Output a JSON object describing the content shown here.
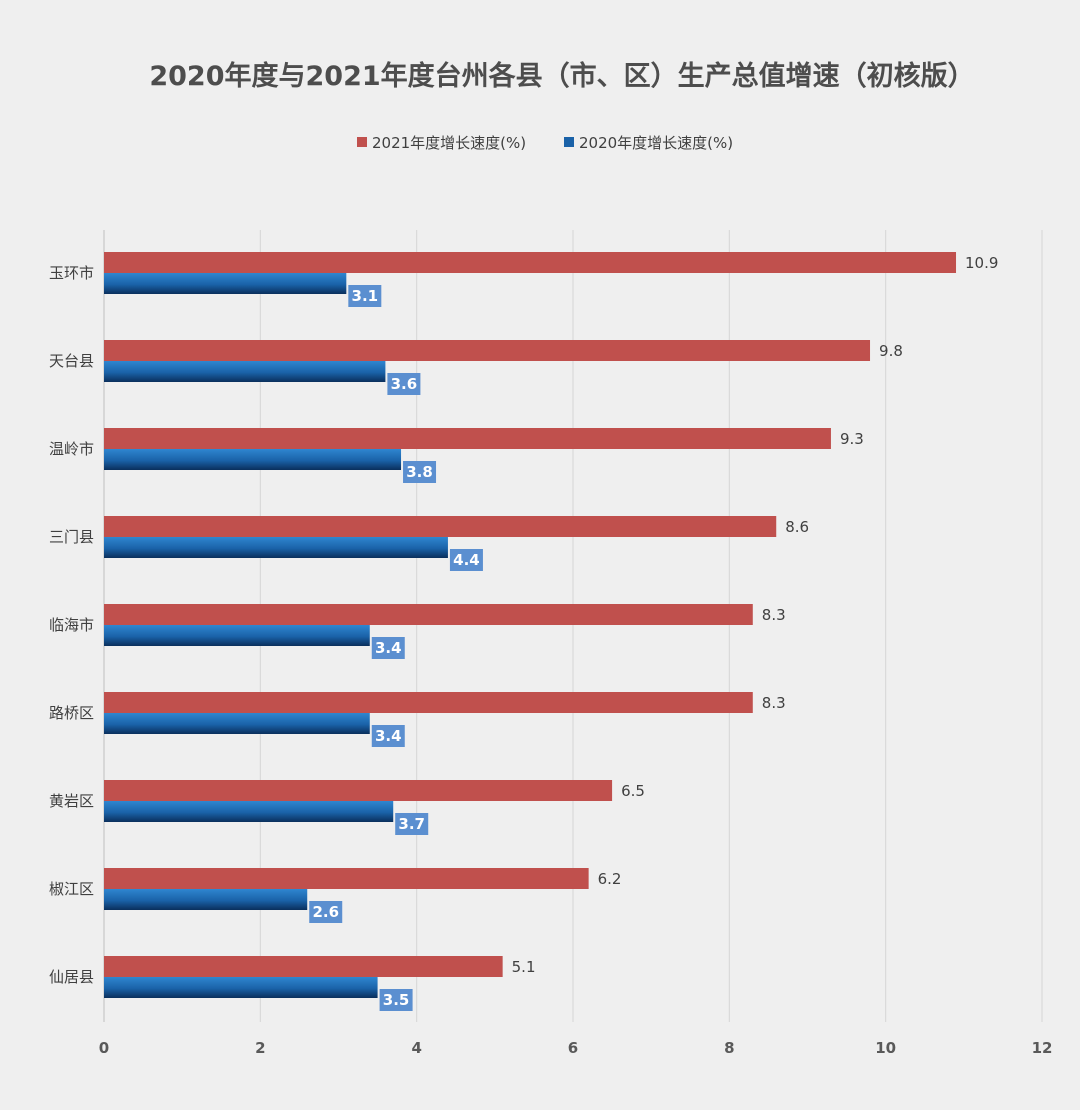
{
  "chart_data": {
    "type": "bar",
    "orientation": "horizontal",
    "title": "2020年度与2021年度台州各县（市、区）生产总值增速（初核版）",
    "categories": [
      "玉环市",
      "天台县",
      "温岭市",
      "三门县",
      "临海市",
      "路桥区",
      "黄岩区",
      "椒江区",
      "仙居县"
    ],
    "series": [
      {
        "name": "2021年度增长速度(%)",
        "color": "#c0504d",
        "values": [
          10.9,
          9.8,
          9.3,
          8.6,
          8.3,
          8.3,
          6.5,
          6.2,
          5.1
        ]
      },
      {
        "name": "2020年度增长速度(%)",
        "color": "#1f6fb5",
        "values": [
          3.1,
          3.6,
          3.8,
          4.4,
          3.4,
          3.4,
          3.7,
          2.6,
          3.5
        ]
      }
    ],
    "xlim": [
      0,
      12
    ],
    "xticks": [
      0,
      2,
      4,
      6,
      8,
      10,
      12
    ],
    "xlabel": "",
    "ylabel": "",
    "grid": true,
    "legend_position": "top"
  }
}
